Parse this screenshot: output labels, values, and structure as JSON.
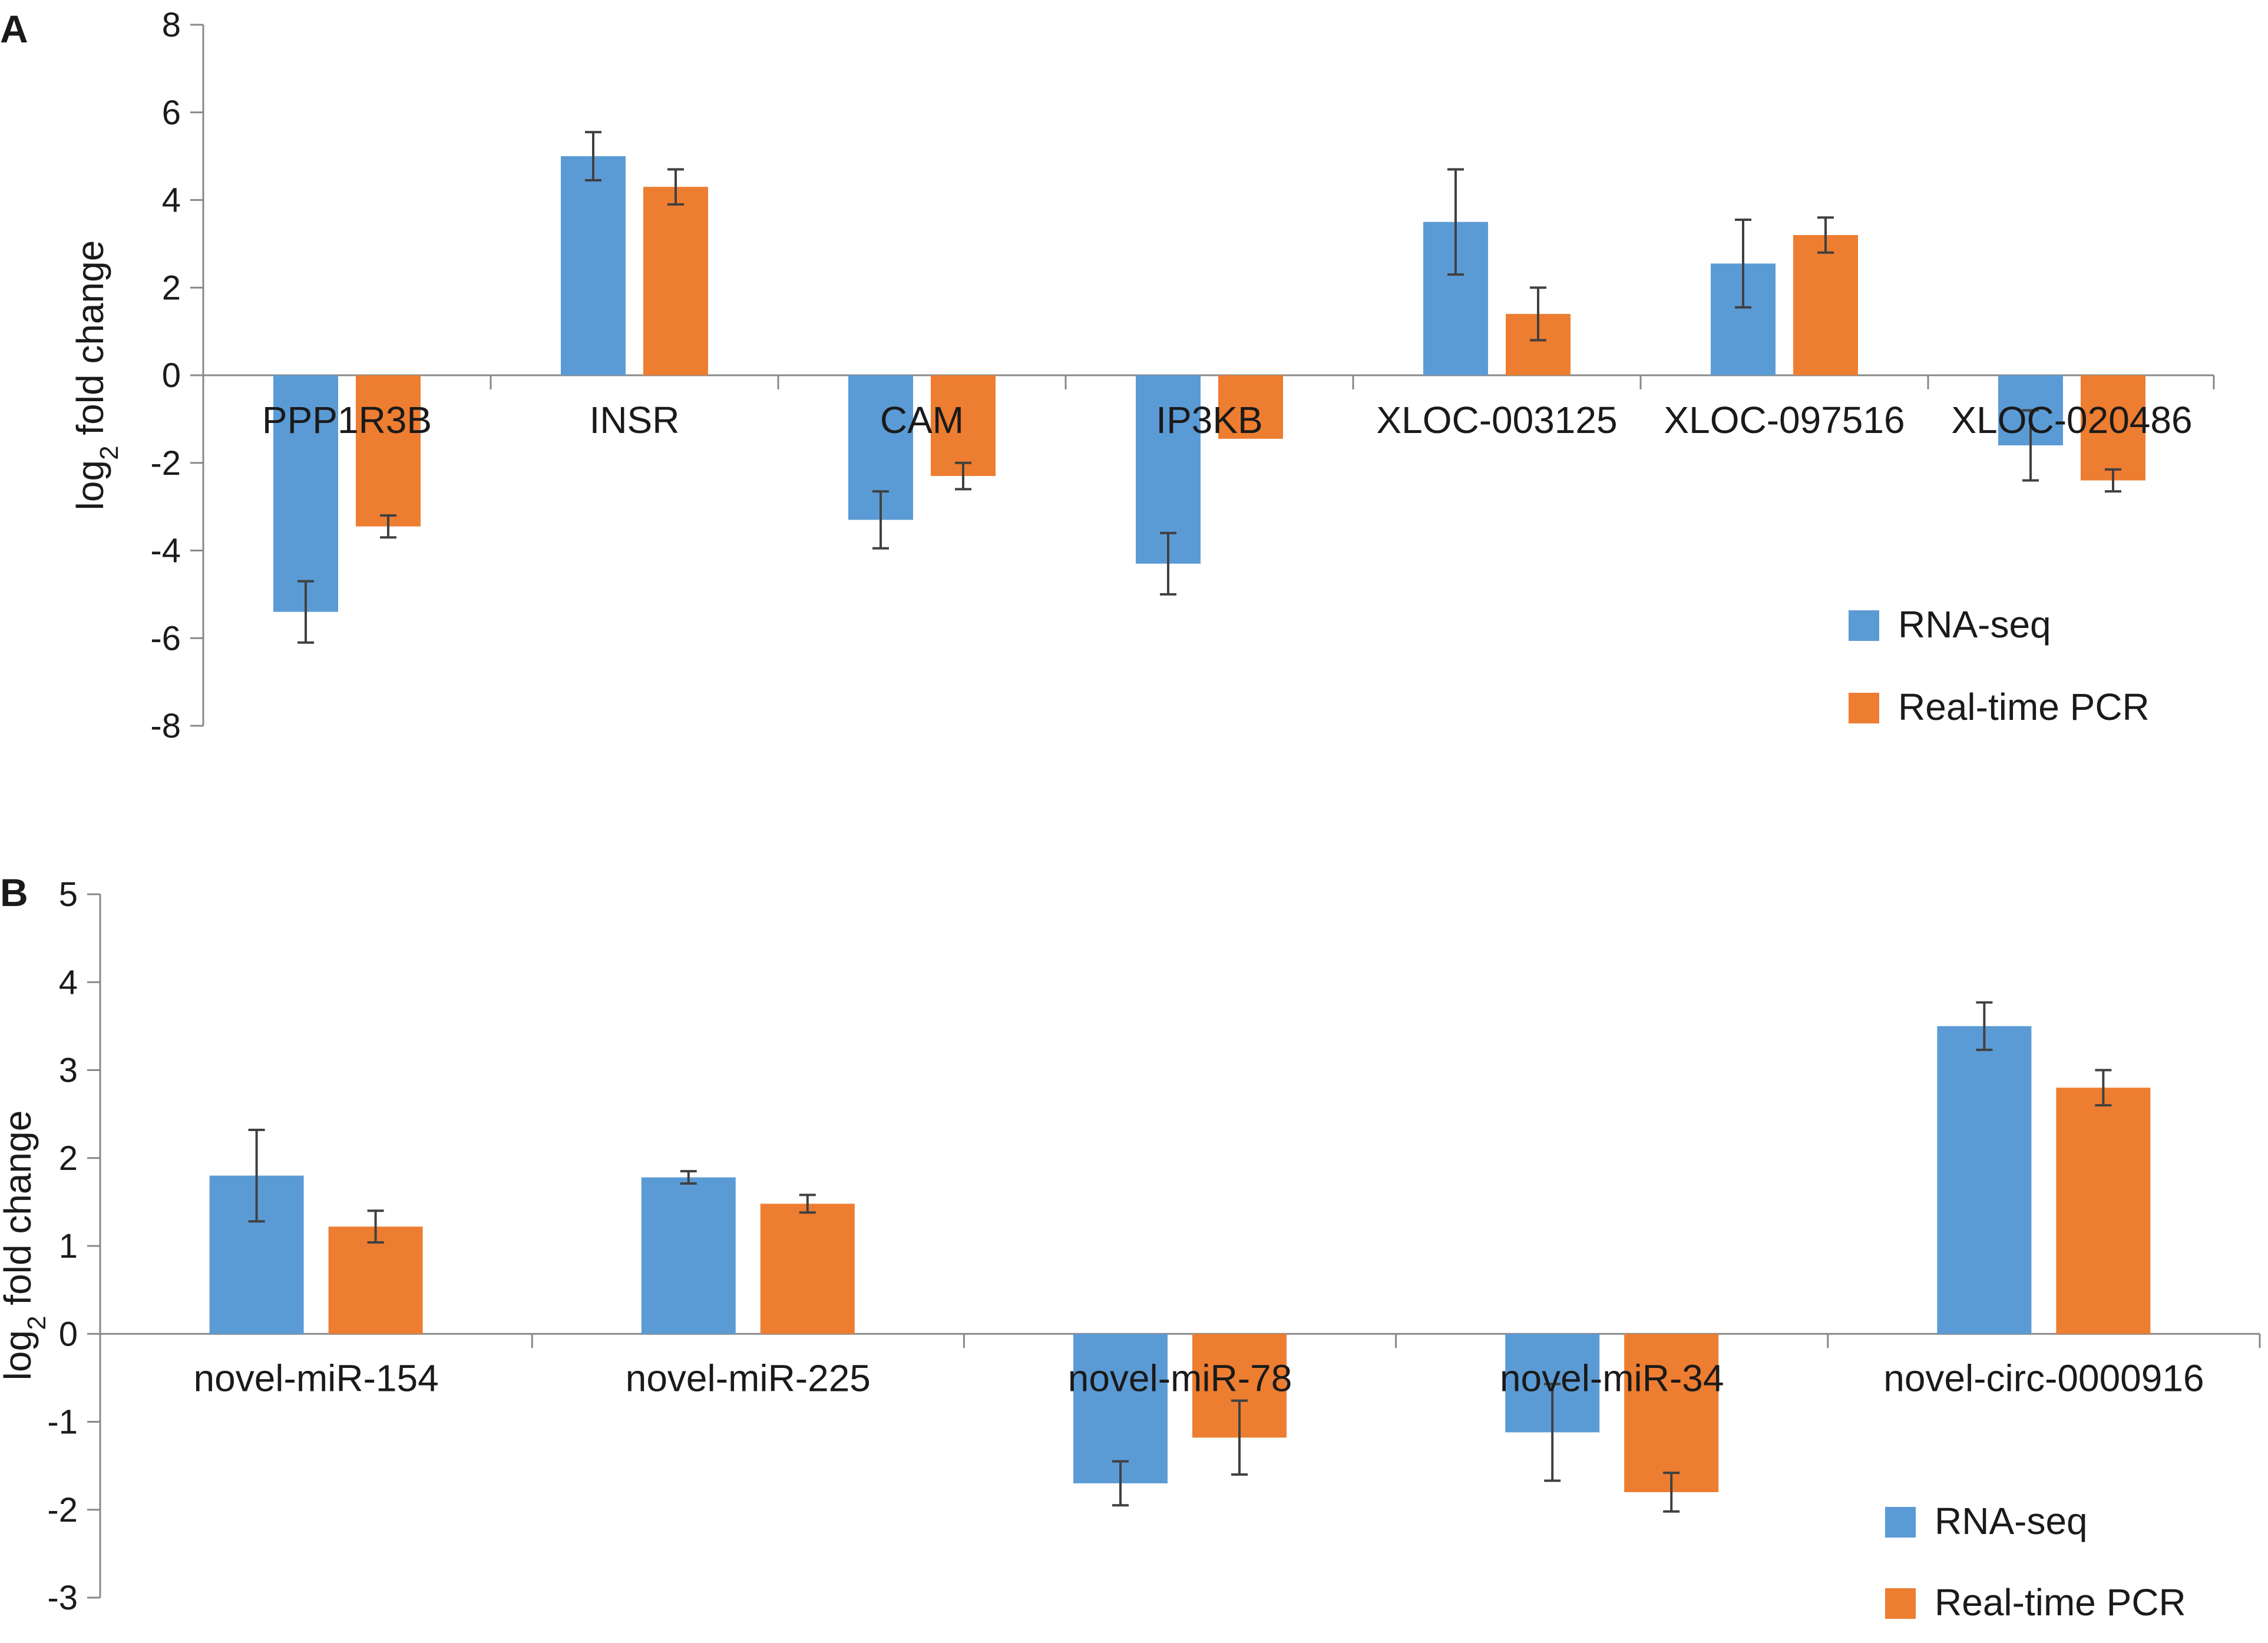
{
  "colors": {
    "rna_seq": "#5b9bd5",
    "pcr": "#ed7d31",
    "axis": "#888888",
    "error": "#404040"
  },
  "chart_data": [
    {
      "type": "bar",
      "panel": "A",
      "ylabel": "log2 fold change",
      "ylabel_main": "log",
      "ylabel_sub": "2",
      "ylabel_rest": " fold change",
      "ylim": [
        -8,
        8
      ],
      "yticks": [
        8,
        6,
        4,
        2,
        0,
        -2,
        -4,
        -6,
        -8
      ],
      "categories": [
        "PPP1R3B",
        "INSR",
        "CAM",
        "IP3KB",
        "XLOC-003125",
        "XLOC-097516",
        "XLOC-020486"
      ],
      "series": [
        {
          "name": "RNA-seq",
          "values": [
            -5.4,
            5.0,
            -3.3,
            -4.3,
            3.5,
            2.55,
            -1.6
          ],
          "errors": [
            0.7,
            0.55,
            0.65,
            0.7,
            1.2,
            1.0,
            0.8
          ]
        },
        {
          "name": "Real-time PCR",
          "values": [
            -3.45,
            4.3,
            -2.3,
            -1.45,
            1.4,
            3.2,
            -2.4
          ],
          "errors": [
            0.25,
            0.4,
            0.3,
            0.0,
            0.6,
            0.4,
            0.25
          ]
        }
      ],
      "legend": [
        "RNA-seq",
        "Real-time PCR"
      ],
      "legend_position": "bottom-right",
      "grid": false
    },
    {
      "type": "bar",
      "panel": "B",
      "ylabel": "log2 fold change",
      "ylabel_main": "log",
      "ylabel_sub": "2",
      "ylabel_rest": " fold change",
      "ylim": [
        -3,
        5
      ],
      "yticks": [
        5,
        4,
        3,
        2,
        1,
        0,
        -1,
        -2,
        -3
      ],
      "categories": [
        "novel-miR-154",
        "novel-miR-225",
        "novel-miR-78",
        "novel-miR-34",
        "novel-circ-0000916"
      ],
      "series": [
        {
          "name": "RNA-seq",
          "values": [
            1.8,
            1.78,
            -1.7,
            -1.12,
            3.5
          ],
          "errors": [
            0.52,
            0.07,
            0.25,
            0.55,
            0.27
          ]
        },
        {
          "name": "Real-time PCR",
          "values": [
            1.22,
            1.48,
            -1.18,
            -1.8,
            2.8
          ],
          "errors": [
            0.18,
            0.1,
            0.42,
            0.22,
            0.2
          ]
        }
      ],
      "legend": [
        "RNA-seq",
        "Real-time PCR"
      ],
      "legend_position": "bottom-right",
      "grid": false
    }
  ]
}
